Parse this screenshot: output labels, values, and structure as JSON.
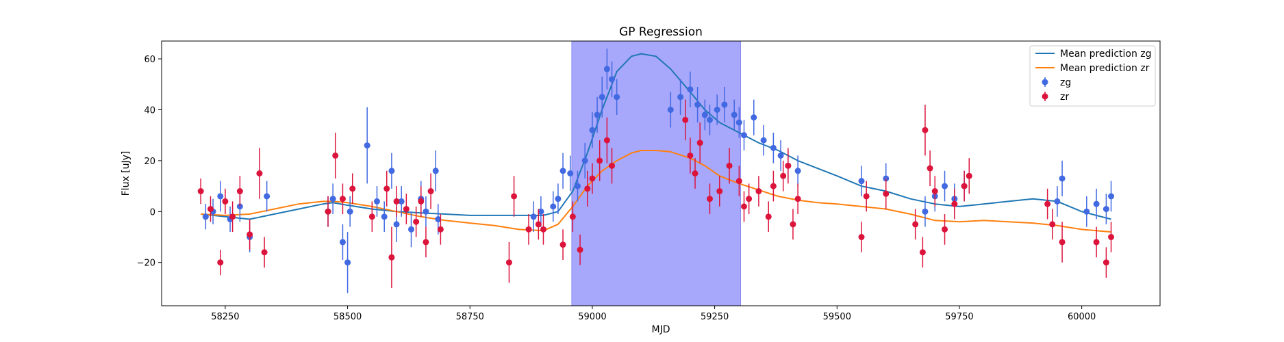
{
  "chart_data": {
    "type": "line",
    "title": "GP Regression",
    "xlabel": "MJD",
    "ylabel": "Flux [uJy]",
    "xlim": [
      58120,
      60160
    ],
    "ylim": [
      -37,
      67
    ],
    "xticks": [
      58250,
      58500,
      58750,
      59000,
      59250,
      59500,
      59750,
      60000
    ],
    "yticks": [
      -20,
      0,
      20,
      40,
      60
    ],
    "grid": false,
    "legend_position": "top-right",
    "highlight_region": {
      "x0": 58958,
      "x1": 59303,
      "color": "#a7a7fb"
    },
    "legend": [
      "Mean prediction zg",
      "Mean prediction zr",
      "zg",
      "zr"
    ],
    "series": [
      {
        "name": "Mean prediction zg",
        "kind": "line",
        "color": "#1f77b4",
        "x": [
          58200,
          58250,
          58300,
          58350,
          58400,
          58450,
          58470,
          58500,
          58550,
          58600,
          58650,
          58700,
          58750,
          58800,
          58850,
          58900,
          58930,
          58960,
          58990,
          59020,
          59050,
          59080,
          59100,
          59130,
          59160,
          59200,
          59230,
          59260,
          59300,
          59340,
          59380,
          59420,
          59460,
          59500,
          59550,
          59600,
          59650,
          59700,
          59750,
          59800,
          59850,
          59900,
          59950,
          60000,
          60060
        ],
        "y": [
          -1,
          -2,
          -3,
          -1,
          1,
          3,
          3.5,
          2.5,
          1,
          0,
          -0.5,
          -1,
          -1.5,
          -1.5,
          -1.5,
          -1.5,
          0,
          8,
          23,
          40,
          55,
          61,
          62,
          61,
          56,
          47,
          40,
          35,
          31,
          27,
          24,
          20,
          17,
          14,
          10,
          8,
          5,
          3,
          2,
          3,
          4,
          5,
          4,
          0,
          -3
        ]
      },
      {
        "name": "Mean prediction zr",
        "kind": "line",
        "color": "#ff7f0e",
        "x": [
          58200,
          58250,
          58300,
          58350,
          58400,
          58450,
          58470,
          58500,
          58550,
          58600,
          58650,
          58700,
          58750,
          58800,
          58850,
          58900,
          58930,
          58960,
          58990,
          59020,
          59050,
          59080,
          59100,
          59130,
          59160,
          59200,
          59230,
          59260,
          59300,
          59340,
          59380,
          59420,
          59460,
          59500,
          59550,
          59600,
          59650,
          59700,
          59750,
          59800,
          59850,
          59900,
          59950,
          60000,
          60060
        ],
        "y": [
          -1,
          -1.5,
          -1,
          1,
          3,
          4,
          4,
          3.5,
          2,
          0,
          -2,
          -3.5,
          -4.5,
          -5.5,
          -7,
          -7.5,
          -5,
          2,
          10,
          16,
          20,
          23,
          24,
          24,
          23.5,
          21,
          18,
          14,
          11,
          8.5,
          6,
          4.5,
          3.5,
          3,
          2,
          1,
          -1,
          -3.5,
          -4,
          -3.5,
          -4,
          -4.5,
          -5.5,
          -7,
          -8
        ]
      },
      {
        "name": "zg",
        "kind": "errorbar",
        "color": "#4169e1",
        "x": [
          58210,
          58225,
          58240,
          58260,
          58280,
          58300,
          58335,
          58460,
          58470,
          58490,
          58500,
          58505,
          58540,
          58560,
          58575,
          58590,
          58600,
          58610,
          58630,
          58650,
          58660,
          58680,
          58685,
          58880,
          58895,
          58920,
          58930,
          58940,
          58955,
          58970,
          58985,
          59000,
          59010,
          59020,
          59030,
          59040,
          59050,
          59160,
          59180,
          59200,
          59215,
          59230,
          59240,
          59255,
          59270,
          59290,
          59300,
          59310,
          59330,
          59350,
          59370,
          59385,
          59400,
          59420,
          59550,
          59600,
          59680,
          59700,
          59720,
          59740,
          59760,
          59950,
          59960,
          60010,
          60030,
          60050,
          60060
        ],
        "y": [
          -2,
          0,
          6,
          -3,
          2,
          -10,
          6,
          0,
          5,
          -12,
          -20,
          0,
          26,
          4,
          -2,
          16,
          -5,
          4,
          -7,
          5,
          0,
          16,
          -3,
          -2,
          0,
          2,
          5,
          16,
          15,
          10,
          20,
          32,
          38,
          45,
          56,
          52,
          45,
          40,
          45,
          48,
          42,
          38,
          36,
          40,
          42,
          38,
          35,
          30,
          37,
          28,
          25,
          22,
          18,
          16,
          12,
          13,
          0,
          6,
          10,
          5,
          10,
          4,
          13,
          0,
          3,
          1,
          6
        ],
        "err": [
          5,
          5,
          6,
          5,
          6,
          6,
          6,
          6,
          6,
          7,
          12,
          6,
          15,
          6,
          6,
          7,
          7,
          6,
          7,
          7,
          6,
          8,
          6,
          6,
          6,
          6,
          6,
          7,
          7,
          6,
          7,
          7,
          7,
          8,
          8,
          7,
          7,
          7,
          7,
          7,
          7,
          6,
          6,
          6,
          7,
          6,
          6,
          6,
          7,
          6,
          6,
          6,
          6,
          6,
          6,
          6,
          6,
          6,
          6,
          6,
          6,
          6,
          7,
          6,
          6,
          6,
          6
        ]
      },
      {
        "name": "zr",
        "kind": "errorbar",
        "color": "#dc143c",
        "x": [
          58200,
          58220,
          58240,
          58250,
          58265,
          58280,
          58300,
          58320,
          58330,
          58460,
          58475,
          58490,
          58510,
          58550,
          58580,
          58590,
          58600,
          58620,
          58640,
          58650,
          58660,
          58670,
          58690,
          58830,
          58840,
          58870,
          58890,
          58900,
          58940,
          58960,
          58975,
          58990,
          59000,
          59015,
          59030,
          59040,
          59190,
          59200,
          59210,
          59220,
          59240,
          59260,
          59280,
          59300,
          59310,
          59320,
          59340,
          59360,
          59370,
          59390,
          59400,
          59410,
          59420,
          59550,
          59560,
          59600,
          59660,
          59675,
          59680,
          59690,
          59700,
          59720,
          59740,
          59760,
          59770,
          59930,
          59940,
          59960,
          60030,
          60050,
          60060
        ],
        "y": [
          8,
          1,
          -20,
          4,
          -2,
          8,
          -9,
          15,
          -16,
          0,
          22,
          5,
          9,
          -2,
          9,
          -18,
          4,
          1,
          -4,
          4,
          -12,
          8,
          -7,
          -20,
          6,
          -7,
          -5,
          -7,
          -13,
          -2,
          -15,
          9,
          13,
          20,
          28,
          18,
          36,
          22,
          15,
          27,
          5,
          8,
          18,
          12,
          2,
          5,
          8,
          -2,
          10,
          14,
          18,
          -5,
          5,
          -10,
          6,
          7,
          -5,
          -16,
          32,
          17,
          8,
          -7,
          3,
          10,
          14,
          3,
          -5,
          -12,
          -12,
          -20,
          -10
        ],
        "err": [
          5,
          5,
          5,
          5,
          6,
          6,
          6,
          10,
          6,
          6,
          9,
          6,
          6,
          6,
          7,
          12,
          6,
          6,
          6,
          6,
          6,
          7,
          6,
          8,
          8,
          6,
          6,
          6,
          6,
          6,
          6,
          7,
          6,
          8,
          9,
          7,
          8,
          7,
          6,
          8,
          6,
          6,
          7,
          6,
          6,
          6,
          6,
          6,
          6,
          6,
          7,
          6,
          6,
          6,
          6,
          6,
          6,
          6,
          10,
          7,
          6,
          6,
          6,
          6,
          7,
          6,
          6,
          8,
          6,
          6,
          6
        ]
      }
    ]
  }
}
